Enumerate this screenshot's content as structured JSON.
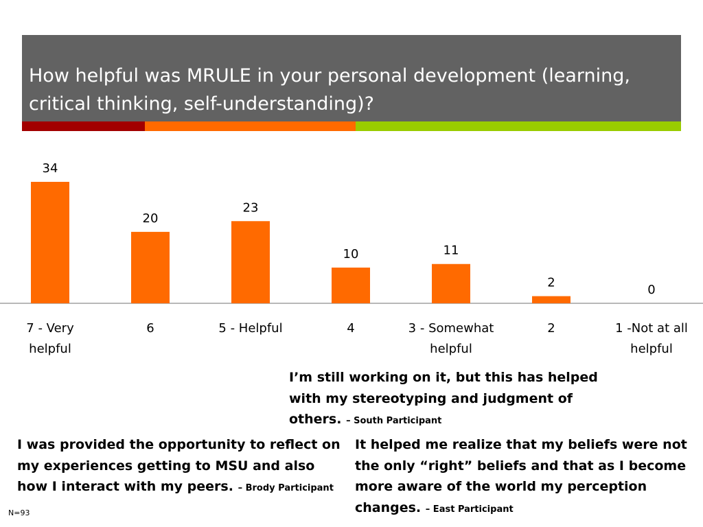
{
  "title": "How helpful was MRULE in your personal development (learning, critical thinking, self-understanding)?",
  "colors": {
    "header_bg": "#626262",
    "stripe_red": "#a20000",
    "stripe_orange": "#ff6a00",
    "stripe_green": "#99cc00",
    "bar": "#ff6a00"
  },
  "chart_data": {
    "type": "bar",
    "categories": [
      [
        "7 - Very",
        "helpful"
      ],
      [
        "6"
      ],
      [
        "5 - Helpful"
      ],
      [
        "4"
      ],
      [
        "3 - Somewhat",
        "helpful"
      ],
      [
        "2"
      ],
      [
        "1 -Not at all",
        "helpful"
      ]
    ],
    "values": [
      34,
      20,
      23,
      10,
      11,
      2,
      0
    ],
    "data_labels": true,
    "title": "",
    "xlabel": "",
    "ylabel": "",
    "ylim": [
      0,
      34
    ],
    "grid": false,
    "legend": "none"
  },
  "quotes": {
    "q1": {
      "text": "I’m still working on it, but this has helped with my stereotyping and judgment of others.",
      "attribution": "– South Participant"
    },
    "q2": {
      "text": "I was provided the opportunity to reflect on my experiences getting to MSU and also how I interact with my peers.",
      "attribution": "– Brody Participant"
    },
    "q3": {
      "text": "It helped me realize that my beliefs were not the only “right” beliefs and that as I become more aware of the world my perception changes.",
      "attribution": "– East Participant"
    }
  },
  "note": "N=93"
}
